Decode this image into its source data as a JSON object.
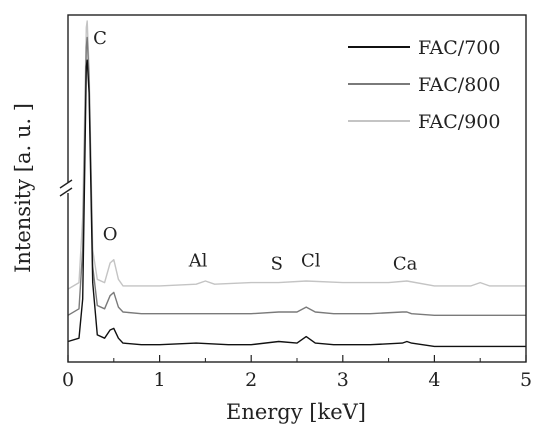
{
  "chart_data": {
    "type": "line",
    "title": "",
    "xlabel": "Energy [keV]",
    "ylabel": "Intensity [a. u. ]",
    "xlim": [
      0,
      5
    ],
    "x_ticks": [
      "0",
      "1",
      "2",
      "3",
      "4",
      "5"
    ],
    "y_axis_break": true,
    "y_values_relative": true,
    "ylim": [
      0,
      1
    ],
    "legend_position": "top-right",
    "series": [
      {
        "name": "FAC/700",
        "color": "#111111",
        "x": [
          0,
          0.12,
          0.16,
          0.2,
          0.21,
          0.23,
          0.27,
          0.32,
          0.4,
          0.46,
          0.5,
          0.55,
          0.6,
          0.8,
          1.0,
          1.4,
          1.75,
          2.0,
          2.3,
          2.5,
          2.6,
          2.7,
          2.9,
          3.3,
          3.65,
          3.7,
          3.75,
          4.0,
          4.5,
          5.0
        ],
        "y": [
          0.02,
          0.03,
          0.15,
          0.86,
          0.88,
          0.78,
          0.2,
          0.04,
          0.03,
          0.055,
          0.06,
          0.03,
          0.015,
          0.01,
          0.01,
          0.015,
          0.01,
          0.01,
          0.02,
          0.015,
          0.035,
          0.015,
          0.01,
          0.01,
          0.015,
          0.02,
          0.015,
          0.005,
          0.005,
          0.005
        ]
      },
      {
        "name": "FAC/800",
        "color": "#7a7a7a",
        "x": [
          0,
          0.12,
          0.16,
          0.2,
          0.21,
          0.23,
          0.27,
          0.32,
          0.4,
          0.46,
          0.5,
          0.55,
          0.6,
          0.8,
          1.0,
          1.4,
          1.75,
          2.0,
          2.3,
          2.5,
          2.6,
          2.7,
          2.9,
          3.3,
          3.65,
          3.7,
          3.75,
          4.0,
          4.5,
          5.0
        ],
        "y": [
          0.1,
          0.12,
          0.3,
          0.92,
          0.95,
          0.82,
          0.25,
          0.13,
          0.12,
          0.16,
          0.17,
          0.125,
          0.11,
          0.105,
          0.105,
          0.105,
          0.105,
          0.105,
          0.11,
          0.11,
          0.125,
          0.11,
          0.105,
          0.105,
          0.11,
          0.11,
          0.105,
          0.1,
          0.1,
          0.1
        ]
      },
      {
        "name": "FAC/900",
        "color": "#c4c4c4",
        "x": [
          0,
          0.12,
          0.16,
          0.2,
          0.21,
          0.23,
          0.27,
          0.32,
          0.4,
          0.46,
          0.5,
          0.55,
          0.6,
          0.8,
          1.0,
          1.4,
          1.5,
          1.6,
          2.0,
          2.3,
          2.6,
          3.0,
          3.5,
          3.7,
          4.0,
          4.4,
          4.5,
          4.6,
          5.0
        ],
        "y": [
          0.18,
          0.2,
          0.4,
          0.98,
          1.0,
          0.85,
          0.3,
          0.21,
          0.2,
          0.26,
          0.27,
          0.21,
          0.19,
          0.19,
          0.19,
          0.195,
          0.205,
          0.195,
          0.2,
          0.2,
          0.205,
          0.2,
          0.2,
          0.205,
          0.19,
          0.19,
          0.2,
          0.19,
          0.19
        ]
      }
    ],
    "annotations": [
      {
        "text": "C",
        "x": 0.35,
        "y": 0.93
      },
      {
        "text": "O",
        "x": 0.46,
        "y": 0.33
      },
      {
        "text": "Al",
        "x": 1.42,
        "y": 0.25
      },
      {
        "text": "S",
        "x": 2.28,
        "y": 0.24
      },
      {
        "text": "Cl",
        "x": 2.65,
        "y": 0.25
      },
      {
        "text": "Ca",
        "x": 3.68,
        "y": 0.24
      }
    ]
  }
}
